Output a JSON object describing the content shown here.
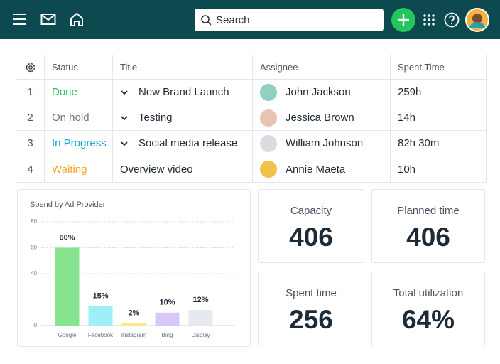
{
  "header": {
    "search_placeholder": "Search"
  },
  "table": {
    "columns": [
      "Status",
      "Title",
      "Assignee",
      "Spent Time"
    ],
    "rows": [
      [
        1,
        "Done",
        "New Brand Launch",
        "John Jackson",
        "259h"
      ],
      [
        2,
        "On hold",
        "Testing",
        "Jessica Brown",
        "14h"
      ],
      [
        3,
        "In Progress",
        "Social media release",
        "William Johnson",
        "82h 30m"
      ],
      [
        4,
        "Waiting",
        "Overview video",
        "Annie Maeta",
        "10h"
      ]
    ]
  },
  "chart_data": {
    "type": "bar",
    "title": "Spend by Ad Provider",
    "categories": [
      "Google",
      "Facebook",
      "Instagram",
      "Bing",
      "Display"
    ],
    "values": [
      60,
      15,
      2,
      10,
      12
    ],
    "value_labels": [
      "60%",
      "15%",
      "2%",
      "10%",
      "12%"
    ],
    "colors": [
      "#86e491",
      "#9deffa",
      "#fde58a",
      "#d6c8f8",
      "#e6e9f0"
    ],
    "ylim": [
      0,
      80
    ],
    "yticks": [
      0,
      40,
      60,
      80
    ],
    "grid": true
  },
  "stats": [
    {
      "label": "Capacity",
      "value": "406"
    },
    {
      "label": "Planned time",
      "value": "406"
    },
    {
      "label": "Spent time",
      "value": "256"
    },
    {
      "label": "Total utilization",
      "value": "64%"
    }
  ]
}
